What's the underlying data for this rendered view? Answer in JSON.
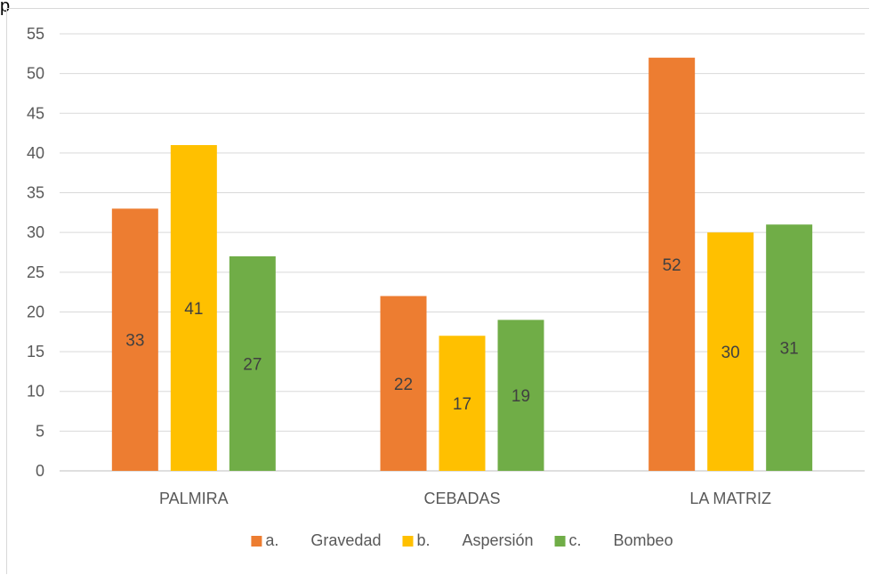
{
  "caption_fragment": "p",
  "chart_data": {
    "type": "bar",
    "categories": [
      "PALMIRA",
      "CEBADAS",
      "LA MATRIZ"
    ],
    "series": [
      {
        "name": "a.  Gravedad",
        "values": [
          33,
          22,
          52
        ],
        "color": "#ED7D31"
      },
      {
        "name": "b.  Aspersión",
        "values": [
          41,
          17,
          30
        ],
        "color": "#FFC000"
      },
      {
        "name": "c.  Bombeo",
        "values": [
          27,
          19,
          31
        ],
        "color": "#70AD47"
      }
    ],
    "ylim": [
      0,
      55
    ],
    "yticks": [
      0,
      5,
      10,
      15,
      20,
      25,
      30,
      35,
      40,
      45,
      50,
      55
    ],
    "grid": true,
    "legend_position": "bottom",
    "data_labels": "center"
  }
}
